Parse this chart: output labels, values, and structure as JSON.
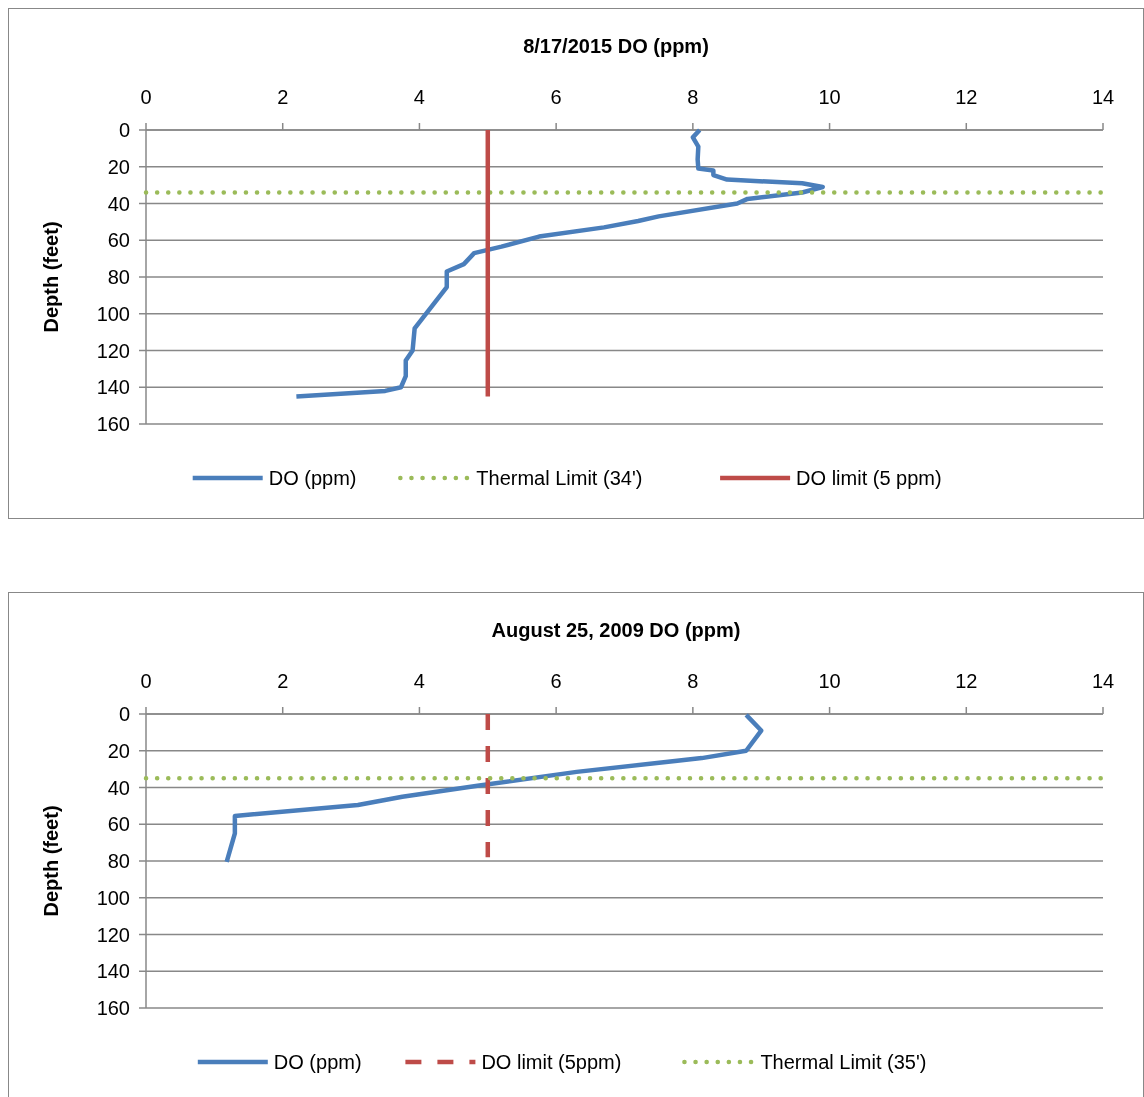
{
  "chart_data": [
    {
      "type": "line",
      "title": "8/17/2015  DO (ppm)",
      "ylabel": "Depth (feet)",
      "xlim": [
        0,
        14
      ],
      "xticks": [
        0,
        2,
        4,
        6,
        8,
        10,
        12,
        14
      ],
      "ylim": [
        160,
        0
      ],
      "yticks": [
        0,
        20,
        40,
        60,
        80,
        100,
        120,
        140,
        160
      ],
      "grid": "y",
      "legend": "bottom",
      "marker": "none",
      "series": [
        {
          "name": "DO (ppm)",
          "color": "#4a7ebb",
          "line_style": "solid",
          "x": [
            8.1,
            8.0,
            8.08,
            8.07,
            8.08,
            8.3,
            8.3,
            8.5,
            9.6,
            9.9,
            9.6,
            8.8,
            8.65,
            7.5,
            7.2,
            6.7,
            5.75,
            5.2,
            4.8,
            4.65,
            4.4,
            4.4,
            3.93,
            3.9,
            3.8,
            3.8,
            3.73,
            3.5,
            2.2
          ],
          "values": [
            0,
            4,
            9,
            16,
            21,
            22,
            24.5,
            27,
            29,
            31,
            34,
            37.5,
            40,
            47,
            49.5,
            53,
            58,
            63.5,
            67,
            73,
            77,
            85.5,
            108,
            120,
            125.5,
            134,
            140,
            142,
            145
          ]
        },
        {
          "name": "Thermal Limit (34')",
          "color": "#9bbb59",
          "line_style": "dotted",
          "x": [
            0,
            14
          ],
          "values": [
            34,
            34
          ]
        },
        {
          "name": "DO limit (5 ppm)",
          "color": "#be4b48",
          "line_style": "solid",
          "x": [
            5,
            5
          ],
          "values": [
            0,
            145
          ]
        }
      ]
    },
    {
      "type": "line",
      "title": "August 25, 2009   DO (ppm)",
      "ylabel": "Depth (feet)",
      "xlim": [
        0,
        14
      ],
      "xticks": [
        0,
        2,
        4,
        6,
        8,
        10,
        12,
        14
      ],
      "ylim": [
        160,
        0
      ],
      "yticks": [
        0,
        20,
        40,
        60,
        80,
        100,
        120,
        140,
        160
      ],
      "grid": "y",
      "legend": "bottom",
      "marker": "none",
      "series": [
        {
          "name": "DO (ppm)",
          "color": "#4a7ebb",
          "line_style": "solid",
          "x": [
            8.78,
            9.0,
            8.78,
            8.13,
            6.3,
            4.85,
            3.75,
            3.1,
            1.3,
            1.3,
            1.18
          ],
          "values": [
            0.5,
            9,
            20,
            24,
            31.5,
            39,
            45,
            49.5,
            55.5,
            65,
            80.5
          ]
        },
        {
          "name": "DO limit (5ppm)",
          "color": "#be4b48",
          "line_style": "dashed",
          "x": [
            5,
            5
          ],
          "values": [
            0,
            78
          ]
        },
        {
          "name": "Thermal Limit (35')",
          "color": "#9bbb59",
          "line_style": "dotted",
          "x": [
            0,
            14
          ],
          "values": [
            35,
            35
          ]
        }
      ]
    }
  ]
}
